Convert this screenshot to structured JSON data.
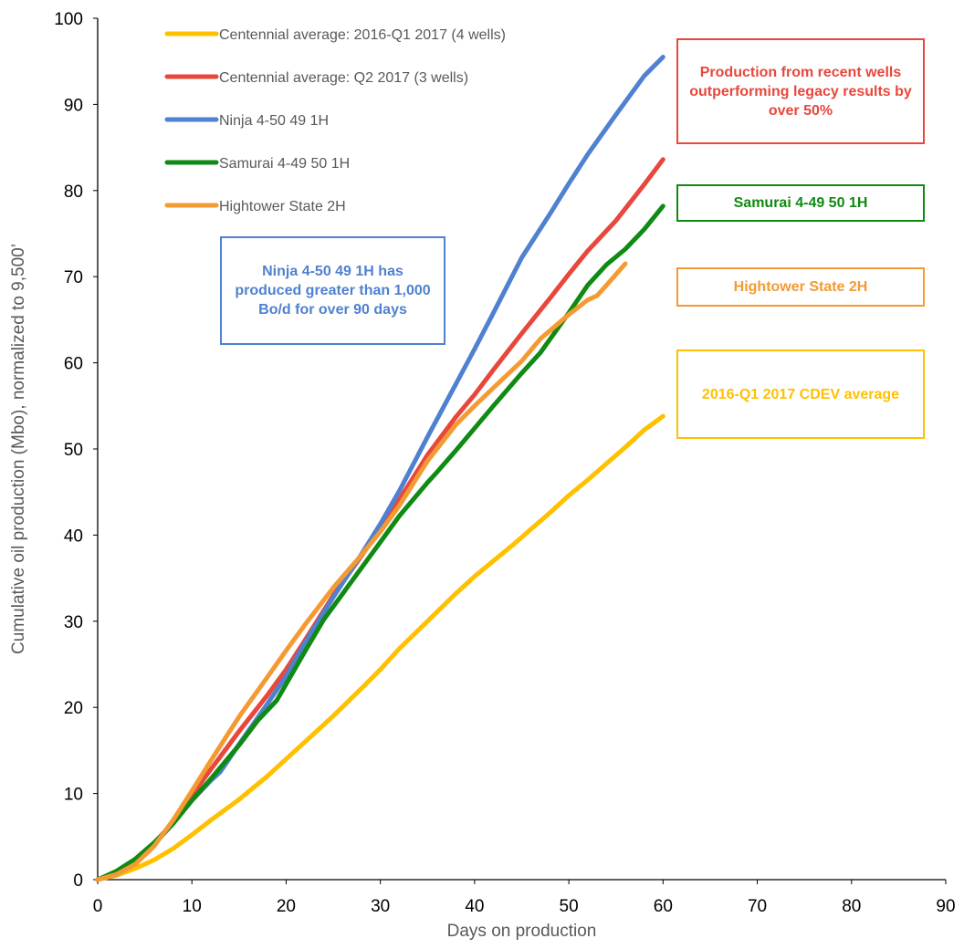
{
  "chart_data": {
    "type": "line",
    "xlabel": "Days on production",
    "ylabel": "Cumulative oil production (Mbo), normalized to 9,500’",
    "xlim": [
      0,
      90
    ],
    "ylim": [
      0,
      100
    ],
    "xticks": [
      0,
      10,
      20,
      30,
      40,
      50,
      60,
      70,
      80,
      90
    ],
    "yticks": [
      0,
      10,
      20,
      30,
      40,
      50,
      60,
      70,
      80,
      90,
      100
    ],
    "grid": false,
    "legend_position": "top-left",
    "series": [
      {
        "name": "Centennial average: 2016-Q1 2017 (4 wells)",
        "color": "#FFC000",
        "x": [
          0,
          2,
          4,
          6,
          8,
          10,
          12,
          15,
          18,
          20,
          22,
          25,
          28,
          30,
          32,
          35,
          38,
          40,
          42,
          44,
          46,
          48,
          50,
          52,
          54,
          56,
          58,
          60
        ],
        "y": [
          0,
          0.5,
          1.3,
          2.3,
          3.6,
          5.2,
          6.9,
          9.3,
          12,
          14,
          16,
          19,
          22.2,
          24.4,
          26.8,
          30,
          33.2,
          35.2,
          37,
          38.8,
          40.7,
          42.6,
          44.6,
          46.4,
          48.3,
          50.2,
          52.2,
          53.8
        ]
      },
      {
        "name": "Centennial average: Q2 2017 (3 wells)",
        "color": "#E8473C",
        "x": [
          0,
          2,
          4,
          6,
          8,
          10,
          12,
          15,
          18,
          20,
          22,
          25,
          28,
          30,
          32,
          35,
          38,
          40,
          42,
          45,
          48,
          50,
          52,
          55,
          58,
          60
        ],
        "y": [
          0,
          0.7,
          2.2,
          4.2,
          6.7,
          9.8,
          12.8,
          17.2,
          21.4,
          24.4,
          27.8,
          33,
          37.6,
          40.8,
          44.1,
          49.3,
          53.7,
          56.3,
          59.2,
          63.4,
          67.5,
          70.3,
          73,
          76.5,
          80.7,
          83.6
        ]
      },
      {
        "name": "Ninja 4-50 49 1H",
        "color": "#4F81D0",
        "x": [
          0,
          2,
          4,
          6,
          8,
          10,
          12,
          13,
          15,
          18,
          20,
          22,
          25,
          28,
          30,
          32,
          35,
          38,
          40,
          42,
          45,
          48,
          50,
          52,
          55,
          58,
          60
        ],
        "y": [
          0,
          0.6,
          2,
          4.1,
          6.5,
          9.2,
          11.5,
          12.5,
          15.7,
          20.4,
          23.6,
          27.5,
          32.8,
          37.8,
          41.3,
          45.1,
          51.4,
          57.5,
          61.6,
          65.8,
          72.2,
          77.3,
          80.8,
          84.2,
          88.8,
          93.3,
          95.5
        ]
      },
      {
        "name": "Samurai 4-49 50 1H",
        "color": "#0F8A12",
        "x": [
          0,
          2,
          4,
          6,
          8,
          10,
          12,
          15,
          17,
          19,
          20,
          22,
          24,
          26,
          28,
          30,
          32,
          35,
          36,
          38,
          40,
          42,
          45,
          47,
          50,
          52,
          54,
          56,
          58,
          60
        ],
        "y": [
          0,
          1,
          2.4,
          4.3,
          6.5,
          9.2,
          11.7,
          15.6,
          18.5,
          20.8,
          22.7,
          26.5,
          30.2,
          33.2,
          36.2,
          39.2,
          42.2,
          46.1,
          47.3,
          49.8,
          52.4,
          55,
          58.8,
          61.2,
          65.8,
          69,
          71.4,
          73.2,
          75.5,
          78.2
        ]
      },
      {
        "name": "Hightower State 2H",
        "color": "#F49A33",
        "x": [
          0,
          2,
          4,
          6,
          8,
          10,
          12,
          15,
          18,
          20,
          22,
          25,
          28,
          30,
          32,
          35,
          38,
          40,
          42,
          45,
          47,
          50,
          52,
          53,
          54,
          56
        ],
        "y": [
          0,
          0.6,
          1.8,
          3.9,
          6.9,
          10.3,
          13.8,
          18.9,
          23.5,
          26.6,
          29.6,
          33.9,
          37.7,
          40.4,
          43.4,
          48.6,
          52.8,
          55,
          57.1,
          60.2,
          62.8,
          65.6,
          67.3,
          67.8,
          69,
          71.5
        ]
      }
    ],
    "annotations": [
      {
        "text": "Production from recent wells outperforming legacy results by over 50%",
        "color": "#E8473C"
      },
      {
        "text": "Samurai 4-49 50 1H",
        "color": "#0F8A12"
      },
      {
        "text": "Hightower State 2H",
        "color": "#F49A33"
      },
      {
        "text": "2016-Q1 2017 CDEV average",
        "color": "#FFC000"
      },
      {
        "text": "Ninja 4-50 49 1H has produced greater than 1,000 Bo/d for over 90 days",
        "color": "#4F81D0"
      }
    ]
  }
}
